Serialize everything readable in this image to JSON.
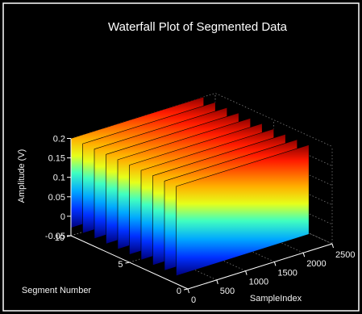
{
  "chart_data": {
    "type": "waterfall",
    "title": "Waterfall Plot of Segmented Data",
    "xlabel": "SampleIndex",
    "ylabel": "Segment Number",
    "zlabel": "Amplitude (V)",
    "xlim": [
      0,
      2500
    ],
    "ylim": [
      0,
      10
    ],
    "zlim": [
      -0.05,
      0.2
    ],
    "x_ticks": [
      "0",
      "500",
      "1000",
      "1500",
      "2000",
      "2500"
    ],
    "y_ticks": [
      "0",
      "5",
      "10"
    ],
    "z_ticks": [
      "-0.05",
      "0",
      "0.05",
      "0.1",
      "0.15",
      "0.2"
    ],
    "segments": [
      {
        "segment": 1,
        "x_start": 0,
        "x_end": 2300
      },
      {
        "segment": 2,
        "x_start": 0,
        "x_end": 2300
      },
      {
        "segment": 3,
        "x_start": 0,
        "x_end": 2300
      },
      {
        "segment": 4,
        "x_start": 0,
        "x_end": 2300
      },
      {
        "segment": 5,
        "x_start": 0,
        "x_end": 2300
      },
      {
        "segment": 6,
        "x_start": 0,
        "x_end": 2300
      },
      {
        "segment": 7,
        "x_start": 0,
        "x_end": 2300
      },
      {
        "segment": 8,
        "x_start": 0,
        "x_end": 2300
      },
      {
        "segment": 9,
        "x_start": 0,
        "x_end": 2300
      },
      {
        "segment": 10,
        "x_start": 0,
        "x_end": 2300
      }
    ],
    "amplitude_range": [
      -0.03,
      0.2
    ],
    "colormap": "jet",
    "background_color": "#000000",
    "axes_color": "#ffffff"
  }
}
